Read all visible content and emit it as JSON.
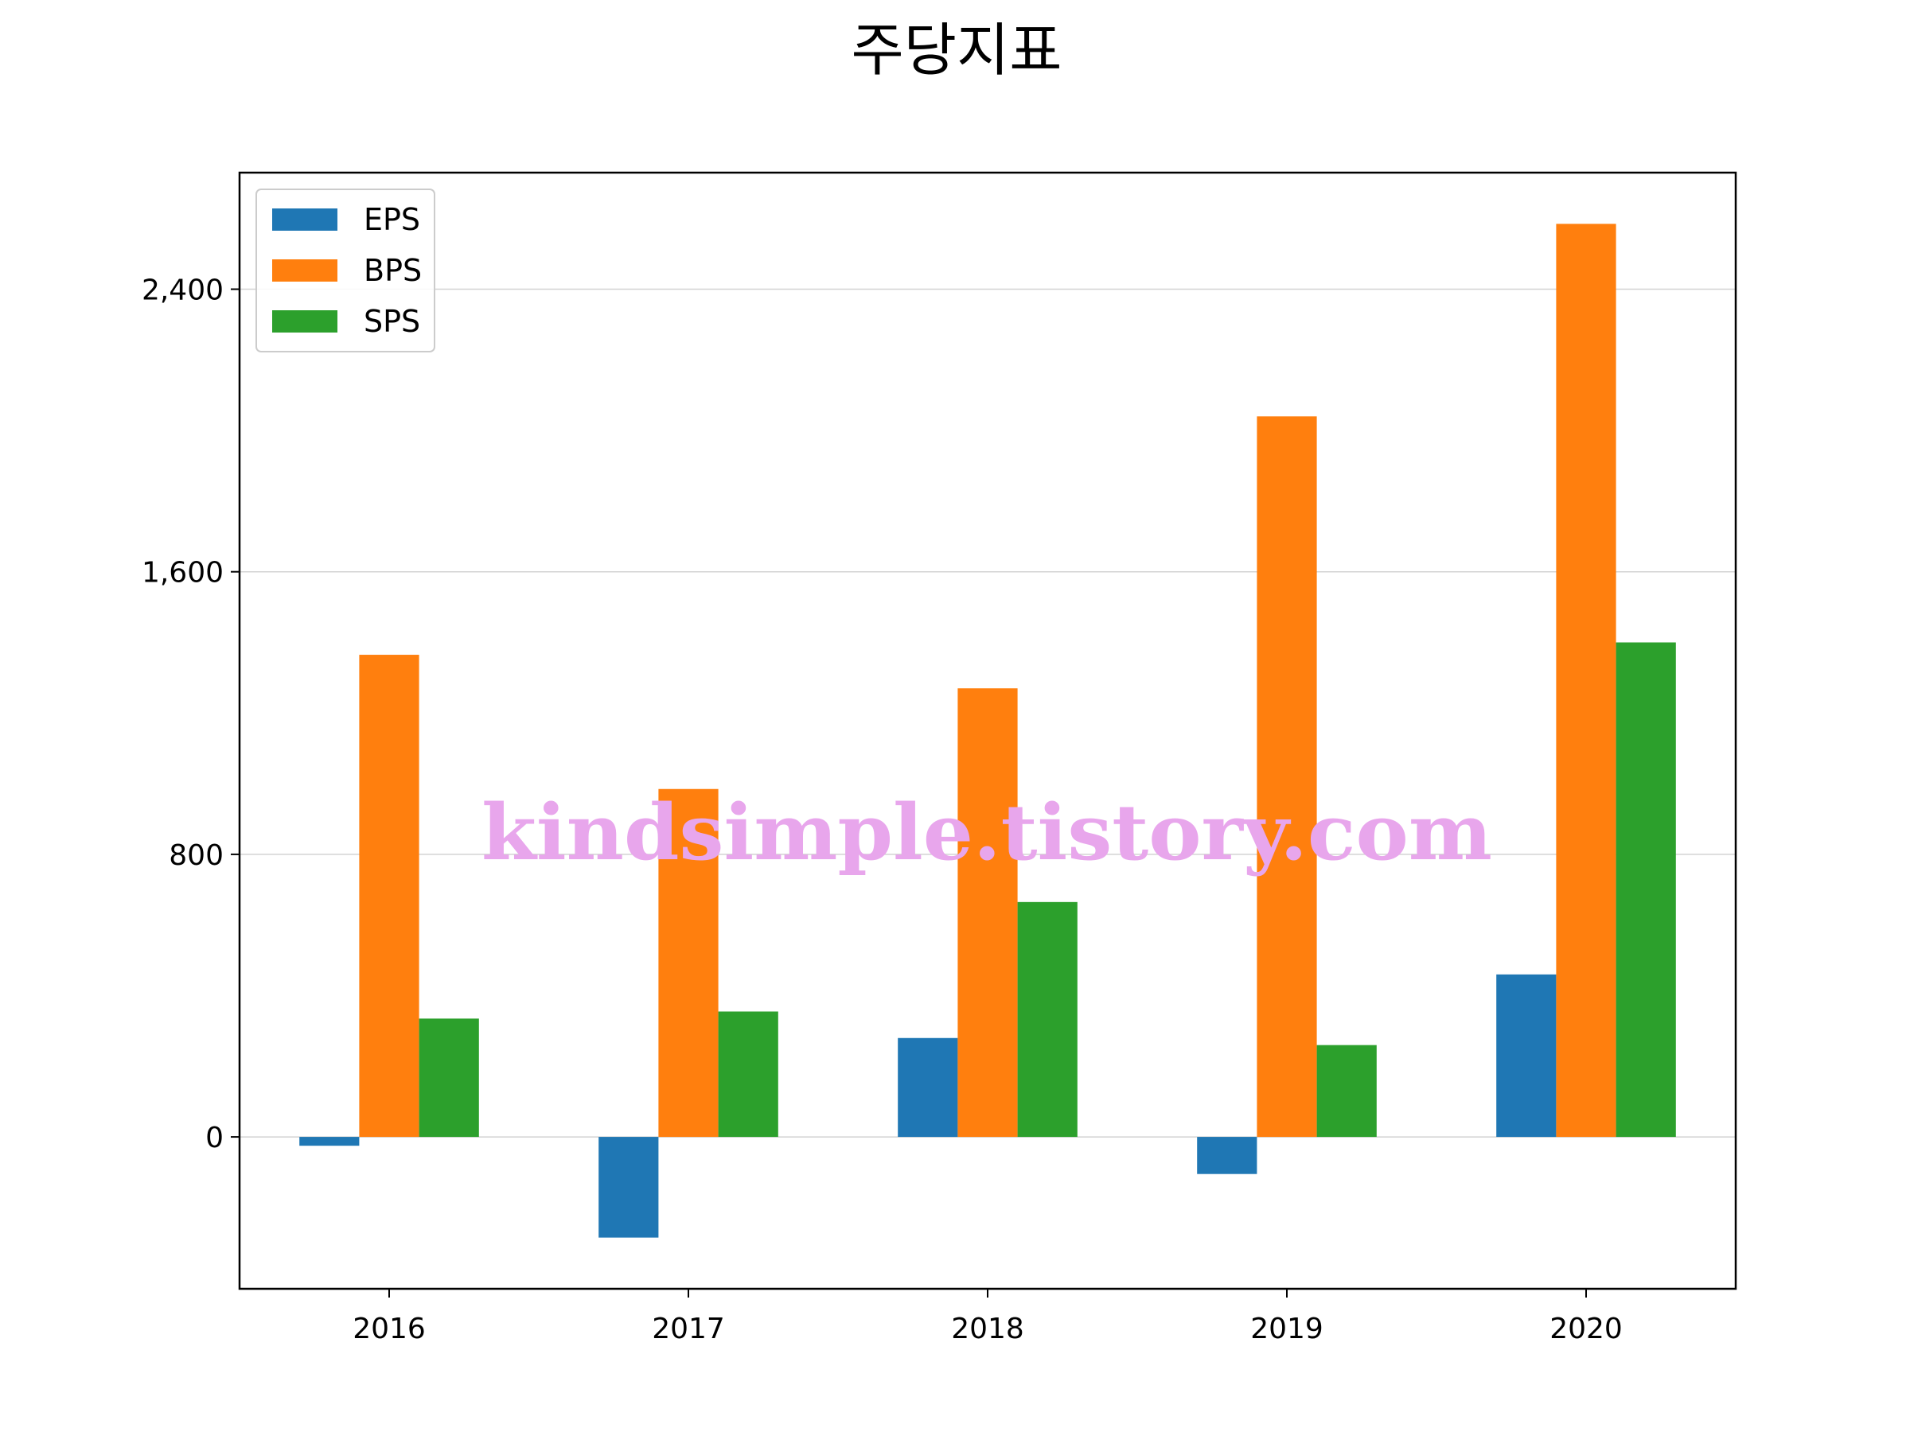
{
  "chart_data": {
    "type": "bar",
    "title": "주당지표",
    "xlabel": "",
    "ylabel": "",
    "categories": [
      "2016",
      "2017",
      "2018",
      "2019",
      "2020"
    ],
    "series": [
      {
        "name": "EPS",
        "color": "#1f77b4",
        "values": [
          -25,
          -285,
          280,
          -105,
          460
        ]
      },
      {
        "name": "BPS",
        "color": "#ff7f0e",
        "values": [
          1365,
          985,
          1270,
          2040,
          2585
        ]
      },
      {
        "name": "SPS",
        "color": "#2ca02c",
        "values": [
          335,
          355,
          665,
          260,
          1400
        ]
      }
    ],
    "ylim": [
      -430,
      2730
    ],
    "yticks": [
      0,
      800,
      1600,
      2400
    ],
    "ytick_labels": [
      "0",
      "800",
      "1,600",
      "2,400"
    ],
    "grid": true,
    "legend_position": "top-left"
  },
  "watermark": "kindsimple.tistory.com"
}
